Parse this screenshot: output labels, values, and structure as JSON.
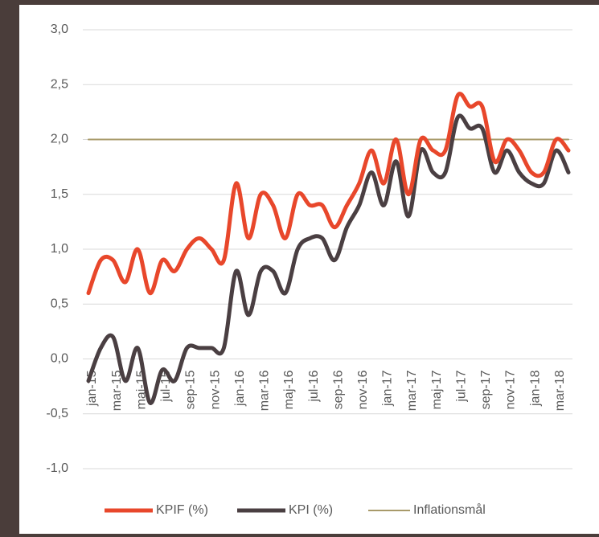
{
  "chart_data": {
    "type": "line",
    "categories": [
      "jan-15",
      null,
      "mar-15",
      null,
      "maj-15",
      null,
      "jul-15",
      null,
      "sep-15",
      null,
      "nov-15",
      null,
      "jan-16",
      null,
      "mar-16",
      null,
      "maj-16",
      null,
      "jul-16",
      null,
      "sep-16",
      null,
      "nov-16",
      null,
      "jan-17",
      null,
      "mar-17",
      null,
      "maj-17",
      null,
      "jul-17",
      null,
      "sep-17",
      null,
      "nov-17",
      null,
      "jan-18",
      null,
      "mar-18",
      null
    ],
    "series": [
      {
        "name": "KPIF (%)",
        "color": "#e8472b",
        "values": [
          0.6,
          0.9,
          0.9,
          0.7,
          1.0,
          0.6,
          0.9,
          0.8,
          1.0,
          1.1,
          1.0,
          0.9,
          1.6,
          1.1,
          1.5,
          1.4,
          1.1,
          1.5,
          1.4,
          1.4,
          1.2,
          1.4,
          1.6,
          1.9,
          1.6,
          2.0,
          1.5,
          2.0,
          1.9,
          1.9,
          2.4,
          2.3,
          2.3,
          1.8,
          2.0,
          1.9,
          1.7,
          1.7,
          2.0,
          1.9
        ]
      },
      {
        "name": "KPI (%)",
        "color": "#4a3f42",
        "values": [
          -0.2,
          0.1,
          0.2,
          -0.2,
          0.1,
          -0.4,
          -0.1,
          -0.2,
          0.1,
          0.1,
          0.1,
          0.1,
          0.8,
          0.4,
          0.8,
          0.8,
          0.6,
          1.0,
          1.1,
          1.1,
          0.9,
          1.2,
          1.4,
          1.7,
          1.4,
          1.8,
          1.3,
          1.9,
          1.7,
          1.7,
          2.2,
          2.1,
          2.1,
          1.7,
          1.9,
          1.7,
          1.6,
          1.6,
          1.9,
          1.7
        ]
      },
      {
        "name": "Inflationsmål",
        "color": "#a89a6a",
        "values": [
          2,
          2,
          2,
          2,
          2,
          2,
          2,
          2,
          2,
          2,
          2,
          2,
          2,
          2,
          2,
          2,
          2,
          2,
          2,
          2,
          2,
          2,
          2,
          2,
          2,
          2,
          2,
          2,
          2,
          2,
          2,
          2,
          2,
          2,
          2,
          2,
          2,
          2,
          2,
          2
        ]
      }
    ],
    "ylim": [
      -1,
      3
    ],
    "yticks": [
      {
        "value": -1,
        "label": "-1,0"
      },
      {
        "value": -0.5,
        "label": "-0,5"
      },
      {
        "value": 0,
        "label": "0,0"
      },
      {
        "value": 0.5,
        "label": "0,5"
      },
      {
        "value": 1,
        "label": "1,0"
      },
      {
        "value": 1.5,
        "label": "1,5"
      },
      {
        "value": 2,
        "label": "2,0"
      },
      {
        "value": 2.5,
        "label": "2,5"
      },
      {
        "value": 3,
        "label": "3,0"
      }
    ],
    "grid": true,
    "legend": "bottom"
  }
}
